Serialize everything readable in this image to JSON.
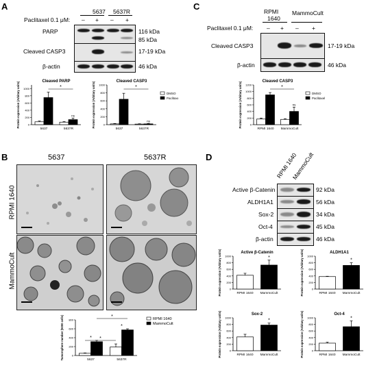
{
  "panel_labels": {
    "a": "A",
    "b": "B",
    "c": "C",
    "d": "D"
  },
  "panelA": {
    "cells": [
      "5637",
      "5637R"
    ],
    "paclitaxel_label": "Paclitaxel 0.1 μM:",
    "signs": [
      "–",
      "+",
      "–",
      "+"
    ],
    "left_labels": [
      "PARP",
      "Cleaved CASP3",
      "β-actin"
    ],
    "sizes": [
      "116 kDa",
      "85 kDa",
      "17-19 kDa",
      "46 kDa"
    ]
  },
  "panelC": {
    "media": [
      "RPMI",
      "1640",
      "MammoCult"
    ],
    "paclitaxel_label": "Paclitaxel 0.1 μM:",
    "signs": [
      "–",
      "+",
      "–",
      "+"
    ],
    "left_labels": [
      "Cleaved CASP3",
      "β-actin"
    ],
    "sizes": [
      "17-19 kDa",
      "46 kDa"
    ]
  },
  "panelB": {
    "cols": [
      "5637",
      "5637R"
    ],
    "rows": [
      "RPMI 1640",
      "MammoCult"
    ]
  },
  "panelD": {
    "media": [
      "RPMI 1640",
      "MammoCult"
    ],
    "left_labels": [
      "Active β-Catenin",
      "ALDH1A1",
      "Sox-2",
      "Oct-4",
      "β-actin"
    ],
    "sizes": [
      "92 kDa",
      "56 kDa",
      "34 kDa",
      "45 kDa",
      "46 kDa"
    ]
  },
  "chart_data": [
    {
      "id": "a1",
      "type": "bar",
      "title": "Cleaved PARP",
      "ylabel": "Protein expression (Arbitary units)",
      "categories": [
        "5637",
        "5637R"
      ],
      "ylim": [
        0,
        1100
      ],
      "series": [
        {
          "name": "DMSO",
          "values": [
            80,
            70
          ]
        },
        {
          "name": "Paclitaxel",
          "values": [
            750,
            140
          ]
        }
      ],
      "errors": [
        [
          20,
          15
        ],
        [
          150,
          40
        ]
      ],
      "annotations": [
        "*",
        "ns"
      ]
    },
    {
      "id": "a2",
      "type": "bar",
      "title": "Cleaved CASP3",
      "ylabel": "Protein expression (Arbitary units)",
      "categories": [
        "5637",
        "5637R"
      ],
      "ylim": [
        0,
        1000
      ],
      "series": [
        {
          "name": "DMSO",
          "values": [
            20,
            15
          ]
        },
        {
          "name": "Paclitaxel",
          "values": [
            640,
            20
          ]
        }
      ],
      "errors": [
        [
          10,
          8
        ],
        [
          150,
          10
        ]
      ],
      "annotations": [
        "*",
        "ns"
      ]
    },
    {
      "id": "c1",
      "type": "bar",
      "title": "Cleaved CASP3",
      "ylabel": "Protein expression (Arbitary units)",
      "categories": [
        "RPMI 1640",
        "MammoCult"
      ],
      "ylim": [
        0,
        1200
      ],
      "series": [
        {
          "name": "DMSO",
          "values": [
            170,
            160
          ]
        },
        {
          "name": "Paclitaxel",
          "values": [
            900,
            400
          ]
        }
      ],
      "errors": [
        [
          30,
          20
        ],
        [
          70,
          130
        ]
      ],
      "annotations": [
        "*",
        "ns"
      ]
    },
    {
      "id": "b1",
      "type": "bar",
      "title": "",
      "ylabel": "Tumorsphere number (5000 cells)",
      "categories": [
        "5637",
        "5637R"
      ],
      "ylim": [
        0,
        800
      ],
      "series": [
        {
          "name": "RPMI 1640",
          "values": [
            50,
            190
          ]
        },
        {
          "name": "MammoCult",
          "values": [
            310,
            575
          ]
        }
      ],
      "errors": [
        [
          8,
          70
        ],
        [
          30,
          25
        ]
      ],
      "annotations": [
        "*",
        "*",
        "*",
        "*"
      ]
    },
    {
      "id": "d1",
      "type": "bar",
      "title": "Active β-Catenin",
      "ylabel": "Protein expression (Arbitary units)",
      "categories": [
        "RPMI 1640",
        "MammoCult"
      ],
      "ylim": [
        0,
        1000
      ],
      "series": [
        {
          "name": "",
          "values": [
            420,
            730
          ]
        }
      ],
      "errors": [
        [
          60,
          150
        ]
      ],
      "annotations": [
        "*"
      ]
    },
    {
      "id": "d2",
      "type": "bar",
      "title": "ALDH1A1",
      "ylabel": "Protein expression (Arbitary units)",
      "categories": [
        "RPMI 1640",
        "MammoCult"
      ],
      "ylim": [
        0,
        1000
      ],
      "series": [
        {
          "name": "",
          "values": [
            380,
            720
          ]
        }
      ],
      "errors": [
        [
          10,
          80
        ]
      ],
      "annotations": [
        "*"
      ]
    },
    {
      "id": "d3",
      "type": "bar",
      "title": "Sox-2",
      "ylabel": "Protein expression (Arbitary units)",
      "categories": [
        "RPMI 1640",
        "MammoCult"
      ],
      "ylim": [
        0,
        1000
      ],
      "series": [
        {
          "name": "",
          "values": [
            420,
            780
          ]
        }
      ],
      "errors": [
        [
          80,
          60
        ]
      ],
      "annotations": [
        "*"
      ]
    },
    {
      "id": "d4",
      "type": "bar",
      "title": "Oct-4",
      "ylabel": "Protein expression (Arbitary units)",
      "categories": [
        "RPMI 1640",
        "MammoCult"
      ],
      "ylim": [
        0,
        1000
      ],
      "series": [
        {
          "name": "",
          "values": [
            230,
            730
          ]
        }
      ],
      "errors": [
        [
          30,
          180
        ]
      ],
      "annotations": [
        "*"
      ]
    }
  ]
}
